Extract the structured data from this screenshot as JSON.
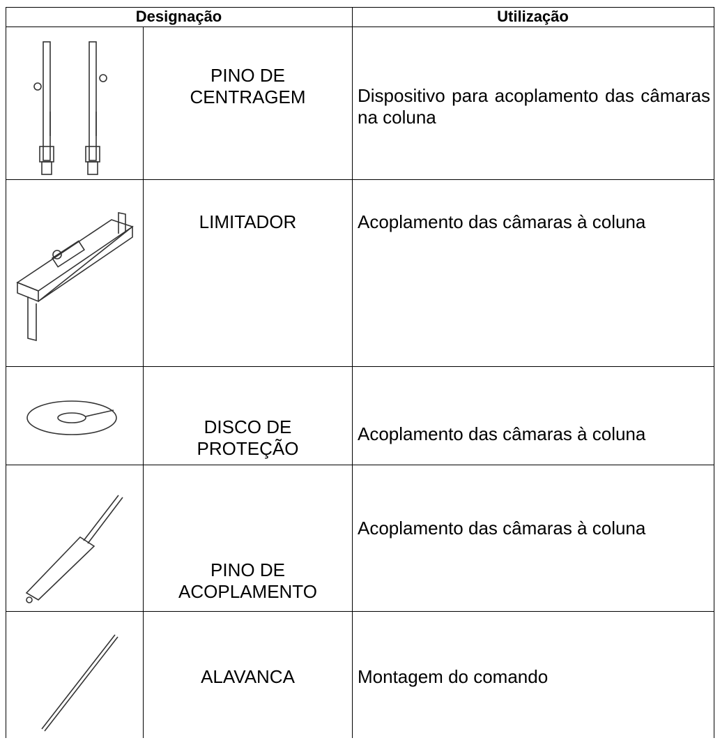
{
  "table": {
    "header": [
      "Designação",
      "Utilização"
    ],
    "rows": [
      [
        "PINO DE\nCENTRAGEM",
        "Dispositivo para acoplamento das câmaras na coluna"
      ],
      [
        "LIMITADOR",
        "Acoplamento das câmaras à coluna"
      ],
      [
        "DISCO DE\nPROTEÇÃO",
        "Acoplamento das câmaras à coluna"
      ],
      [
        "PINO DE\nACOPLAMENTO",
        "Acoplamento das câmaras à coluna"
      ],
      [
        "ALAVANCA",
        "Montagem do comando"
      ]
    ]
  }
}
